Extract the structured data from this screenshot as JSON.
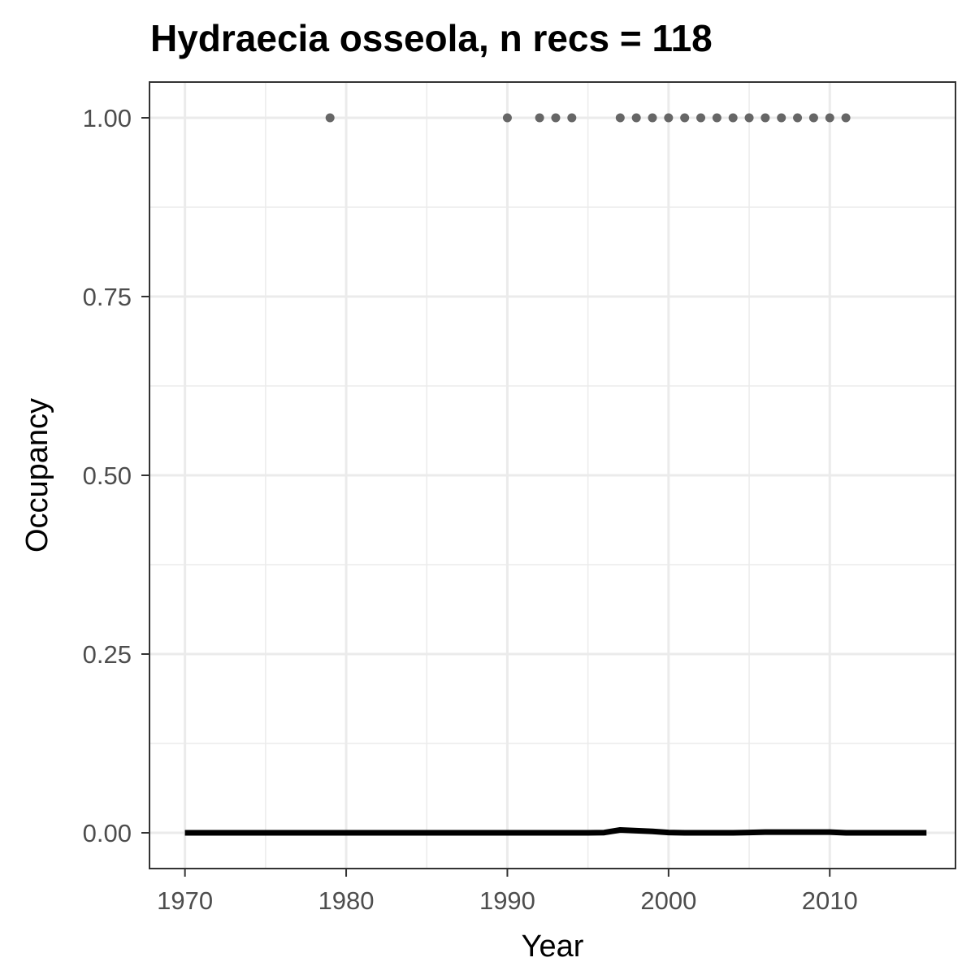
{
  "chart_data": {
    "type": "scatter",
    "title": "Hydraecia osseola, n recs = 118",
    "xlabel": "Year",
    "ylabel": "Occupancy",
    "xlim": [
      1967.8,
      2017.8
    ],
    "ylim": [
      -0.05,
      1.05
    ],
    "x_ticks": [
      1970,
      1980,
      1990,
      2000,
      2010
    ],
    "x_tick_labels": [
      "1970",
      "1980",
      "1990",
      "2000",
      "2010"
    ],
    "y_ticks": [
      0,
      0.25,
      0.5,
      0.75,
      1
    ],
    "y_tick_labels": [
      "0.00",
      "0.25",
      "0.50",
      "0.75",
      "1.00"
    ],
    "grid": true,
    "series": [
      {
        "kind": "points",
        "color": "#666666",
        "x": [
          1979,
          1990,
          1992,
          1993,
          1994,
          1997,
          1998,
          1999,
          2000,
          2001,
          2002,
          2003,
          2004,
          2005,
          2006,
          2007,
          2008,
          2009,
          2010,
          2011
        ],
        "y": [
          1,
          1,
          1,
          1,
          1,
          1,
          1,
          1,
          1,
          1,
          1,
          1,
          1,
          1,
          1,
          1,
          1,
          1,
          1,
          1
        ]
      },
      {
        "kind": "line",
        "color": "#000000",
        "x": [
          1970,
          1995,
          1996,
          1997,
          1998,
          1999,
          2000,
          2001,
          2004,
          2005,
          2006,
          2008,
          2010,
          2011,
          2016
        ],
        "y": [
          0,
          0,
          0.0003,
          0.004,
          0.003,
          0.002,
          0.0005,
          0,
          0,
          0.0005,
          0.001,
          0.001,
          0.001,
          0,
          0
        ]
      }
    ]
  }
}
